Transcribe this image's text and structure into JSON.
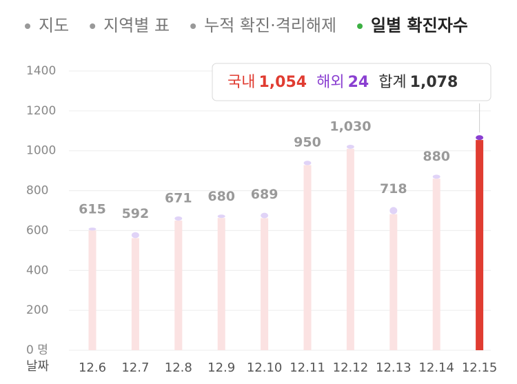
{
  "tabs": [
    "지도",
    "지역별 표",
    "누적 확진·격리해제",
    "일별 확진자수"
  ],
  "active_tab": 3,
  "chart_data": {
    "type": "bar",
    "stacked": true,
    "x_label": "날짜",
    "categories": [
      "12.6",
      "12.7",
      "12.8",
      "12.9",
      "12.10",
      "12.11",
      "12.12",
      "12.13",
      "12.14",
      "12.15"
    ],
    "series": [
      {
        "name": "국내",
        "color": "#fbe2e2",
        "highlight_color": "#e03c31",
        "values": [
          600,
          562,
          650,
          663,
          662,
          928,
          1010,
          682,
          860,
          1054
        ],
        "value_labels": [
          null,
          null,
          null,
          null,
          null,
          null,
          null,
          null,
          null,
          "1,054"
        ]
      },
      {
        "name": "해외",
        "color": "#e0d3f7",
        "highlight_color": "#8a3fd1",
        "values": [
          15,
          30,
          21,
          17,
          27,
          22,
          20,
          36,
          20,
          24
        ]
      }
    ],
    "totals": {
      "name": "합계",
      "values": [
        615,
        592,
        671,
        680,
        689,
        950,
        1030,
        718,
        880,
        1078
      ],
      "value_labels": [
        "615",
        "592",
        "671",
        "680",
        "689",
        "950",
        "1,030",
        "718",
        "880",
        "1,078"
      ]
    },
    "highlight_index": 9,
    "ylim": [
      0,
      1400
    ],
    "yticks": [
      {
        "value": 0,
        "label": "0 명"
      },
      200,
      400,
      600,
      800,
      1000,
      1200,
      1400
    ],
    "grid": true
  }
}
